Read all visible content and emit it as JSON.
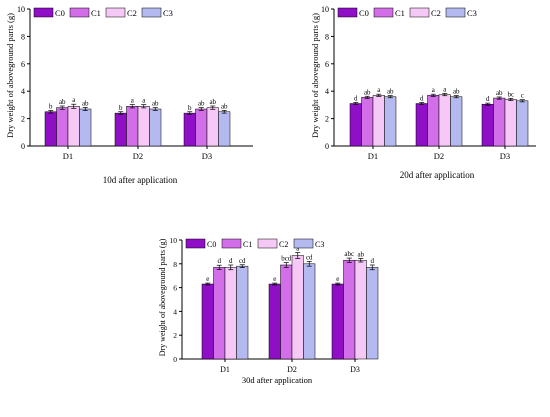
{
  "colors": {
    "C0": "#8e0fc6",
    "C1": "#d26ee8",
    "C2": "#f6c8f6",
    "C3": "#b4b9ef",
    "axis": "#000000"
  },
  "legend": [
    "C0",
    "C1",
    "C2",
    "C3"
  ],
  "chart_data": [
    {
      "type": "bar",
      "title": "10d after application",
      "xlabel": "",
      "ylabel": "Dry weight of aboveground parts (g)",
      "categories": [
        "D1",
        "D2",
        "D3"
      ],
      "ylim": [
        0,
        10
      ],
      "yticks": [
        "0",
        "2",
        "4",
        "6",
        "8",
        "10"
      ],
      "legend_position": "top-left",
      "grid": false,
      "series": [
        {
          "name": "C0",
          "values": [
            2.5,
            2.4,
            2.4
          ],
          "errors": [
            0.1,
            0.1,
            0.1
          ],
          "letters": [
            "b",
            "b",
            "b"
          ]
        },
        {
          "name": "C1",
          "values": [
            2.8,
            2.9,
            2.7
          ],
          "errors": [
            0.12,
            0.12,
            0.1
          ],
          "letters": [
            "ab",
            "a",
            "ab"
          ]
        },
        {
          "name": "C2",
          "values": [
            2.9,
            2.9,
            2.8
          ],
          "errors": [
            0.15,
            0.12,
            0.12
          ],
          "letters": [
            "a",
            "a",
            "ab"
          ]
        },
        {
          "name": "C3",
          "values": [
            2.7,
            2.7,
            2.5
          ],
          "errors": [
            0.12,
            0.1,
            0.1
          ],
          "letters": [
            "ab",
            "ab",
            "ab"
          ]
        }
      ]
    },
    {
      "type": "bar",
      "title": "20d after application",
      "xlabel": "",
      "ylabel": "Dry weight of aboveground parts (g)",
      "categories": [
        "D1",
        "D2",
        "D3"
      ],
      "ylim": [
        0,
        10
      ],
      "yticks": [
        "0",
        "2",
        "4",
        "6",
        "8",
        "10"
      ],
      "legend_position": "top-left",
      "grid": false,
      "series": [
        {
          "name": "C0",
          "values": [
            3.1,
            3.1,
            3.05
          ],
          "errors": [
            0.08,
            0.08,
            0.08
          ],
          "letters": [
            "d",
            "d",
            "d"
          ]
        },
        {
          "name": "C1",
          "values": [
            3.55,
            3.7,
            3.5
          ],
          "errors": [
            0.08,
            0.08,
            0.08
          ],
          "letters": [
            "ab",
            "a",
            "ab"
          ]
        },
        {
          "name": "C2",
          "values": [
            3.7,
            3.75,
            3.4
          ],
          "errors": [
            0.08,
            0.08,
            0.08
          ],
          "letters": [
            "a",
            "a",
            "bc"
          ]
        },
        {
          "name": "C3",
          "values": [
            3.6,
            3.6,
            3.3
          ],
          "errors": [
            0.08,
            0.08,
            0.08
          ],
          "letters": [
            "ab",
            "ab",
            "c"
          ]
        }
      ]
    },
    {
      "type": "bar",
      "title": "30d after application",
      "xlabel": "",
      "ylabel": "Dry weight of aboveground parts (g)",
      "categories": [
        "D1",
        "D2",
        "D3"
      ],
      "ylim": [
        0,
        10
      ],
      "yticks": [
        "0",
        "2",
        "4",
        "6",
        "8",
        "10"
      ],
      "legend_position": "top-left",
      "grid": false,
      "series": [
        {
          "name": "C0",
          "values": [
            6.3,
            6.3,
            6.3
          ],
          "errors": [
            0.08,
            0.08,
            0.08
          ],
          "letters": [
            "e",
            "e",
            "e"
          ]
        },
        {
          "name": "C1",
          "values": [
            7.7,
            7.9,
            8.3
          ],
          "errors": [
            0.18,
            0.2,
            0.18
          ],
          "letters": [
            "d",
            "bcd",
            "abc"
          ]
        },
        {
          "name": "C2",
          "values": [
            7.7,
            8.7,
            8.3
          ],
          "errors": [
            0.2,
            0.25,
            0.15
          ],
          "letters": [
            "d",
            "a",
            "ab"
          ]
        },
        {
          "name": "C3",
          "values": [
            7.8,
            8.0,
            7.7
          ],
          "errors": [
            0.12,
            0.2,
            0.2
          ],
          "letters": [
            "cd",
            "cd",
            "d"
          ]
        }
      ]
    }
  ]
}
